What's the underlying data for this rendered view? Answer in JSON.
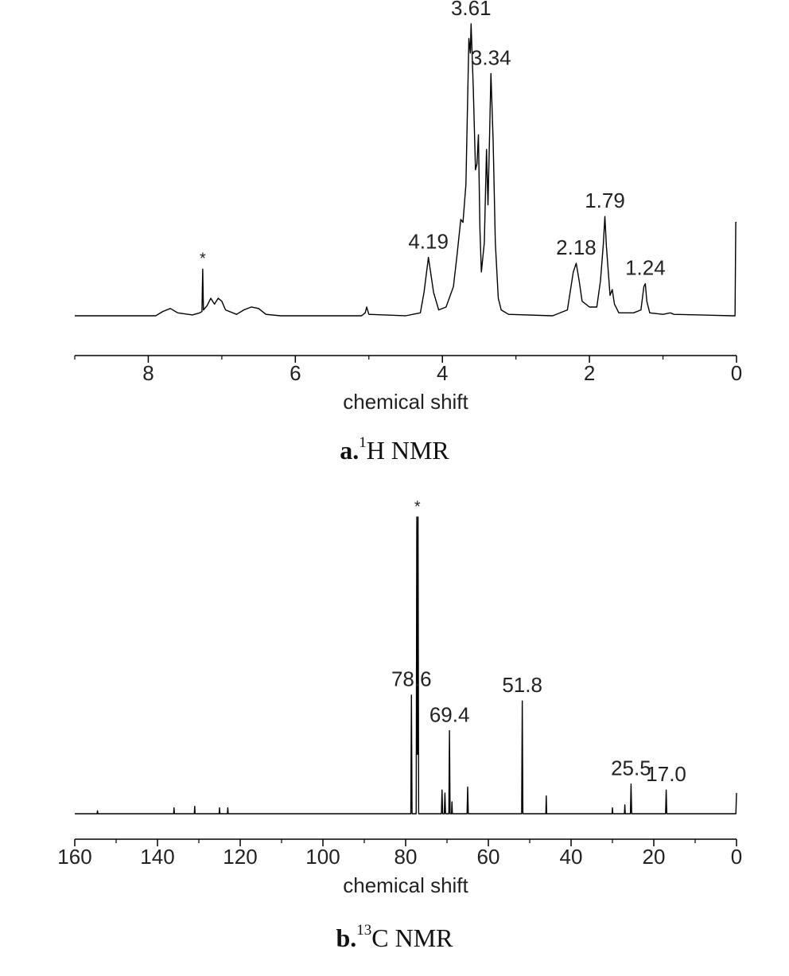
{
  "chart_data": [
    {
      "type": "line",
      "color": "#000000",
      "xlabel": "chemical shift",
      "xlim": [
        9,
        0
      ],
      "xticks": [
        8,
        6,
        4,
        2,
        0
      ],
      "xminorticks": [
        9,
        7,
        5,
        3,
        1
      ],
      "ylim": [
        0,
        100
      ],
      "x": [
        9.0,
        7.9,
        7.8,
        7.7,
        7.6,
        7.4,
        7.3,
        7.27,
        7.26,
        7.25,
        7.2,
        7.15,
        7.1,
        7.05,
        7.0,
        6.95,
        6.8,
        6.7,
        6.6,
        6.5,
        6.4,
        6.2,
        5.1,
        5.05,
        5.03,
        5.0,
        4.5,
        4.3,
        4.25,
        4.19,
        4.12,
        4.05,
        3.95,
        3.85,
        3.8,
        3.75,
        3.72,
        3.68,
        3.64,
        3.62,
        3.61,
        3.58,
        3.55,
        3.53,
        3.51,
        3.49,
        3.47,
        3.43,
        3.4,
        3.38,
        3.36,
        3.34,
        3.31,
        3.28,
        3.24,
        3.2,
        3.1,
        2.5,
        2.3,
        2.22,
        2.18,
        2.14,
        2.1,
        2.0,
        1.9,
        1.85,
        1.81,
        1.79,
        1.77,
        1.72,
        1.69,
        1.66,
        1.6,
        1.4,
        1.3,
        1.26,
        1.24,
        1.22,
        1.18,
        1.0,
        0.9,
        0.85,
        0.05,
        0.02,
        0.01,
        0.0
      ],
      "values": [
        0,
        0,
        1.5,
        2.5,
        1,
        0.3,
        1,
        1.5,
        16,
        2,
        3.5,
        6,
        4,
        6,
        5,
        2,
        0.5,
        2,
        3,
        2.5,
        0.5,
        0,
        0,
        1,
        3,
        0.5,
        0,
        1,
        8,
        20,
        8,
        2,
        3,
        10,
        21,
        33,
        32,
        45,
        95,
        90,
        100,
        78,
        50,
        52,
        62,
        30,
        15,
        25,
        57,
        38,
        60,
        83,
        60,
        25,
        6,
        2,
        0.5,
        0,
        2,
        15,
        18,
        12,
        5,
        3,
        3,
        12,
        25,
        34,
        24,
        7,
        9,
        4,
        1,
        1,
        2,
        10,
        11,
        5,
        1,
        0.5,
        1,
        0.5,
        0,
        0,
        32,
        32
      ],
      "annotations": [
        {
          "x": 7.26,
          "label": "*"
        },
        {
          "x": 4.19,
          "label": "4.19"
        },
        {
          "x": 3.61,
          "label": "3.61"
        },
        {
          "x": 3.34,
          "label": "3.34"
        },
        {
          "x": 2.18,
          "label": "2.18"
        },
        {
          "x": 1.79,
          "label": "1.79"
        },
        {
          "x": 1.24,
          "label": "1.24"
        }
      ],
      "caption": {
        "letter": "a.",
        "superscript": "1",
        "text": "H NMR"
      }
    },
    {
      "type": "line",
      "color": "#000000",
      "xlabel": "chemical shift",
      "xlim": [
        160,
        0
      ],
      "xticks": [
        160,
        140,
        120,
        100,
        80,
        60,
        40,
        20,
        0
      ],
      "xminorticks": [
        150,
        130,
        110,
        90,
        70,
        50,
        30,
        10
      ],
      "ylim": [
        0,
        100
      ],
      "x": [
        160,
        154.6,
        154.5,
        154.4,
        136.1,
        136,
        135.9,
        131.1,
        131,
        130.9,
        125.1,
        125,
        124.9,
        123.1,
        123,
        122.9,
        78.75,
        78.6,
        78.45,
        77.45,
        77.3,
        77.15,
        77.0,
        76.85,
        71.35,
        71.2,
        71.05,
        70.65,
        70.5,
        70.35,
        69.55,
        69.4,
        69.25,
        68.9,
        68.8,
        68.7,
        65.15,
        65,
        64.85,
        51.95,
        51.8,
        51.65,
        46.1,
        46,
        45.9,
        30.1,
        30,
        29.9,
        27.1,
        27,
        26.9,
        25.65,
        25.5,
        25.35,
        17.15,
        17,
        16.85,
        0.15,
        0
      ],
      "values": [
        0,
        0,
        1,
        0,
        0,
        2,
        0,
        0,
        2.5,
        0,
        0,
        2,
        0,
        0,
        2,
        0,
        0,
        40,
        0,
        0,
        100,
        20,
        100,
        0,
        0,
        8,
        0,
        0,
        7,
        0,
        0,
        28,
        0,
        0,
        4,
        0,
        0,
        9,
        0,
        0,
        38,
        0,
        0,
        6,
        0,
        0,
        2,
        0,
        0,
        3,
        0,
        0,
        10,
        0,
        0,
        8,
        0,
        0,
        7
      ],
      "annotations": [
        {
          "x": 77.15,
          "label": "*"
        },
        {
          "x": 78.6,
          "label": "78.6"
        },
        {
          "x": 69.4,
          "label": "69.4"
        },
        {
          "x": 51.8,
          "label": "51.8"
        },
        {
          "x": 25.5,
          "label": "25.5"
        },
        {
          "x": 17.0,
          "label": "17.0"
        }
      ],
      "caption": {
        "letter": "b.",
        "superscript": "13",
        "text": "C NMR"
      }
    }
  ]
}
